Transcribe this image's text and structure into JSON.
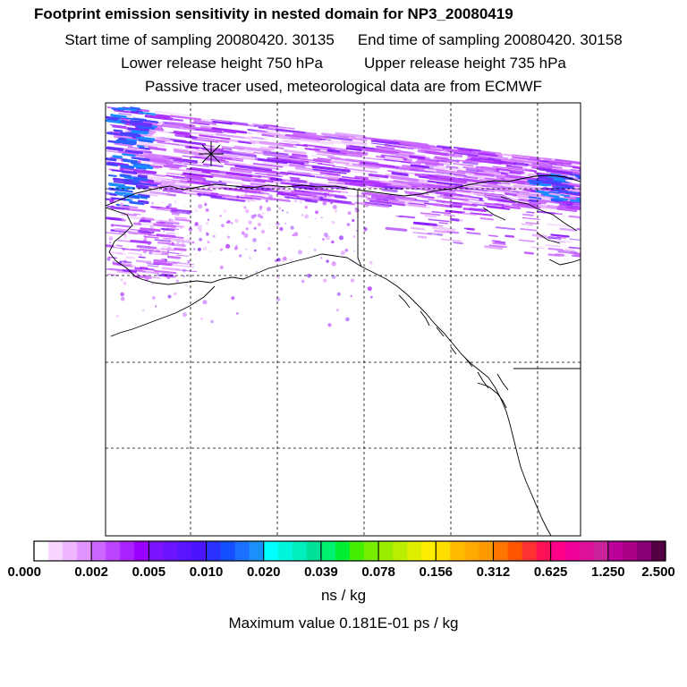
{
  "header": {
    "title": "Footprint emission sensitivity in nested domain for NP3_20080419",
    "start_time": "Start time of sampling 20080420. 30135",
    "end_time": "End time of sampling 20080420. 30158",
    "lower_height": "Lower release height  750 hPa",
    "upper_height": "Upper release height  735 hPa",
    "tracer_info": "Passive tracer used, meteorological data are from ECMWF"
  },
  "colorbar": {
    "tick_labels": [
      "0.000",
      "0.002",
      "0.005",
      "0.010",
      "0.020",
      "0.039",
      "0.078",
      "0.156",
      "0.312",
      "0.625",
      "1.250",
      "2.500"
    ],
    "unit": "ns / kg",
    "colors": [
      "#ffffff",
      "#f6d6ff",
      "#eeb6ff",
      "#e294ff",
      "#cc66ff",
      "#bb44ff",
      "#aa22ff",
      "#9a00ff",
      "#7a14ff",
      "#6a14ff",
      "#5a14ff",
      "#4a14ff",
      "#2a30ff",
      "#1450ff",
      "#1a70ff",
      "#1a90ff",
      "#00ffff",
      "#00f5dd",
      "#00eebb",
      "#00e099",
      "#00f070",
      "#00ee33",
      "#44ee00",
      "#77ee00",
      "#99ee00",
      "#bbee00",
      "#ddee00",
      "#ffee00",
      "#ffdd00",
      "#ffbb00",
      "#ffaa00",
      "#ff9900",
      "#ff7700",
      "#ff5500",
      "#ff3333",
      "#ff1155",
      "#ff0088",
      "#ee0099",
      "#dd1199",
      "#cc2299",
      "#bb0099",
      "#aa0088",
      "#880077",
      "#550044"
    ]
  },
  "max_value": "Maximum value  0.181E-01 ps / kg",
  "map": {
    "release_marker": "release-location"
  }
}
